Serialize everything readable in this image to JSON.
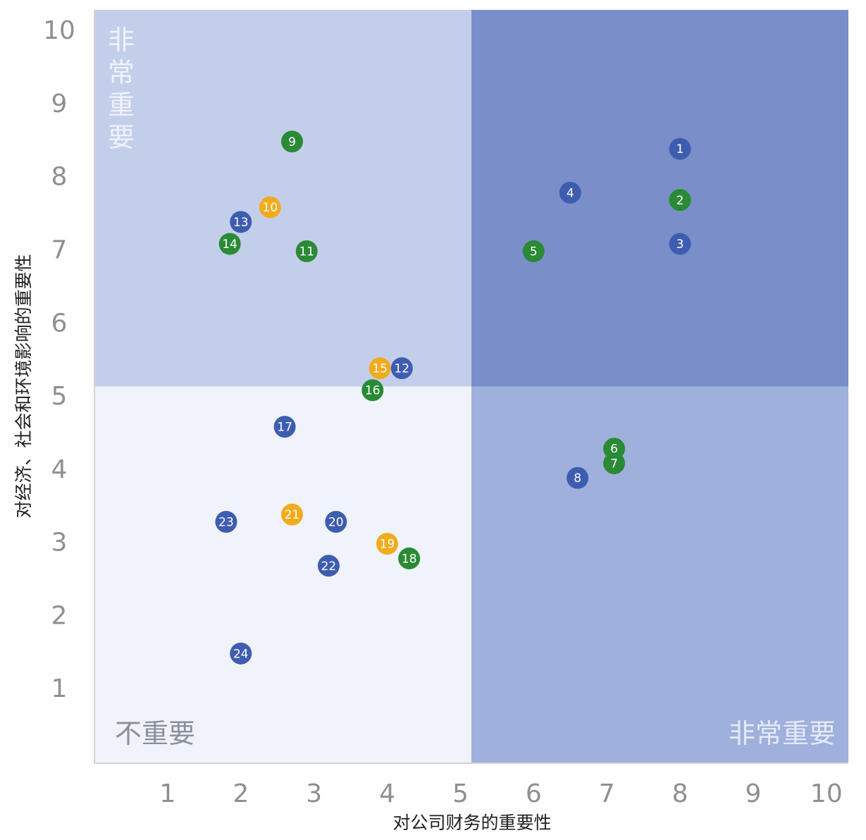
{
  "chart_data": {
    "type": "scatter",
    "xlabel": "对公司财务的重要性",
    "ylabel": "对经济、社会和环境影响的重要性",
    "xlim": [
      0,
      10.3
    ],
    "ylim": [
      0,
      10.3
    ],
    "xticks": [
      "1",
      "2",
      "3",
      "4",
      "5",
      "6",
      "7",
      "8",
      "9",
      "10"
    ],
    "yticks": [
      "1",
      "2",
      "3",
      "4",
      "5",
      "6",
      "7",
      "8",
      "9",
      "10"
    ],
    "threshold": 5.15,
    "grid": false,
    "quadrants": {
      "top_left": {
        "label": "非常重要",
        "color": "#c3cfea"
      },
      "top_right": {
        "label": "",
        "color": "#7a8fc9"
      },
      "bottom_left": {
        "label": "不重要",
        "color": "#f0f3fa"
      },
      "bottom_right": {
        "label": "非常重要",
        "color": "#9fb0dc"
      }
    },
    "category_colors": {
      "blue": "#3e5db0",
      "green": "#2a8a35",
      "orange": "#f2ab1c"
    },
    "points": [
      {
        "label": "1",
        "x": 8.0,
        "y": 8.4,
        "category": "blue"
      },
      {
        "label": "2",
        "x": 8.0,
        "y": 7.7,
        "category": "green"
      },
      {
        "label": "3",
        "x": 8.0,
        "y": 7.1,
        "category": "blue"
      },
      {
        "label": "4",
        "x": 6.5,
        "y": 7.8,
        "category": "blue"
      },
      {
        "label": "5",
        "x": 6.0,
        "y": 7.0,
        "category": "green"
      },
      {
        "label": "6",
        "x": 7.1,
        "y": 4.3,
        "category": "green"
      },
      {
        "label": "7",
        "x": 7.1,
        "y": 4.1,
        "category": "green"
      },
      {
        "label": "8",
        "x": 6.6,
        "y": 3.9,
        "category": "blue"
      },
      {
        "label": "9",
        "x": 2.7,
        "y": 8.5,
        "category": "green"
      },
      {
        "label": "10",
        "x": 2.4,
        "y": 7.6,
        "category": "orange"
      },
      {
        "label": "11",
        "x": 2.9,
        "y": 7.0,
        "category": "green"
      },
      {
        "label": "12",
        "x": 4.2,
        "y": 5.4,
        "category": "blue"
      },
      {
        "label": "13",
        "x": 2.0,
        "y": 7.4,
        "category": "blue"
      },
      {
        "label": "14",
        "x": 1.85,
        "y": 7.1,
        "category": "green"
      },
      {
        "label": "15",
        "x": 3.9,
        "y": 5.4,
        "category": "orange"
      },
      {
        "label": "16",
        "x": 3.8,
        "y": 5.1,
        "category": "green"
      },
      {
        "label": "17",
        "x": 2.6,
        "y": 4.6,
        "category": "blue"
      },
      {
        "label": "18",
        "x": 4.3,
        "y": 2.8,
        "category": "green"
      },
      {
        "label": "19",
        "x": 4.0,
        "y": 3.0,
        "category": "orange"
      },
      {
        "label": "20",
        "x": 3.3,
        "y": 3.3,
        "category": "blue"
      },
      {
        "label": "21",
        "x": 2.7,
        "y": 3.4,
        "category": "orange"
      },
      {
        "label": "22",
        "x": 3.2,
        "y": 2.7,
        "category": "blue"
      },
      {
        "label": "23",
        "x": 1.8,
        "y": 3.3,
        "category": "blue"
      },
      {
        "label": "24",
        "x": 2.0,
        "y": 1.5,
        "category": "blue"
      }
    ]
  }
}
